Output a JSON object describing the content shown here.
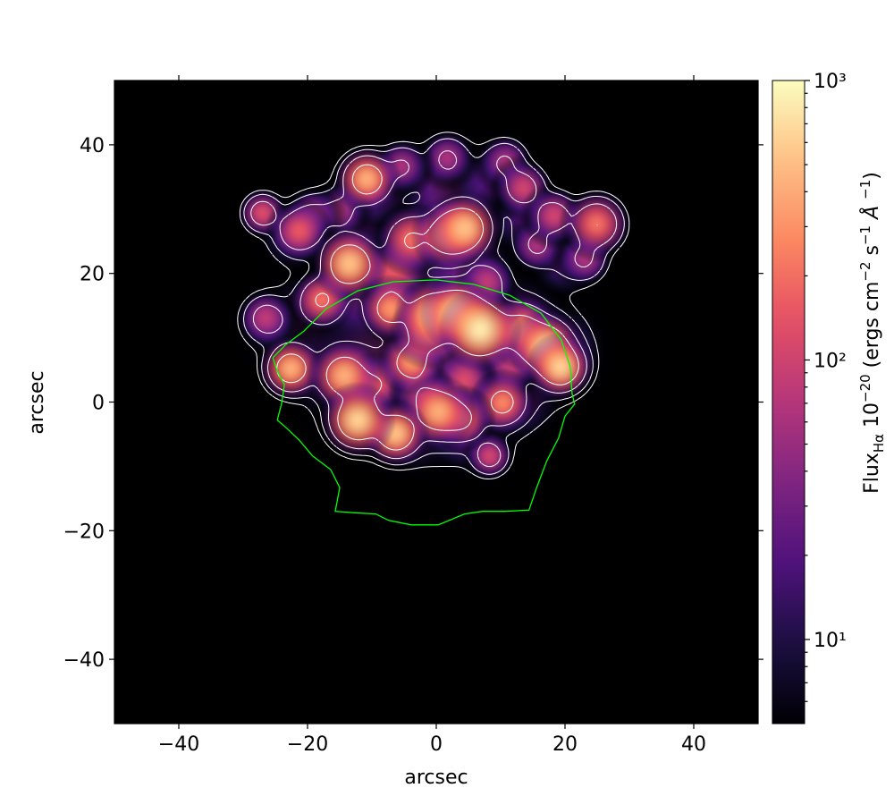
{
  "chart_data": {
    "type": "image",
    "xlabel": "arcsec",
    "ylabel": "arcsec",
    "xlim": [
      -50,
      50
    ],
    "ylim": [
      -50,
      50
    ],
    "xticks": [
      {
        "value": -40,
        "label": "−40"
      },
      {
        "value": -20,
        "label": "−20"
      },
      0,
      20,
      40
    ],
    "yticks": [
      {
        "value": -40,
        "label": "−40"
      },
      {
        "value": -20,
        "label": "−20"
      },
      0,
      20,
      40
    ],
    "colormap": "magma",
    "background": "#000000",
    "clim": [
      5,
      1000
    ],
    "log_color": true,
    "colorbar": {
      "label": [
        "Flux",
        "Hα",
        " 10",
        "−20",
        " (ergs cm",
        "−2",
        " s",
        "−1",
        " Å ",
        "−1",
        ")"
      ],
      "ticks": [
        {
          "value": 10,
          "label": "10¹"
        },
        {
          "value": 100,
          "label": "10²"
        },
        {
          "value": 1000,
          "label": "10³"
        }
      ],
      "minor_ticks": [
        6,
        7,
        8,
        9,
        20,
        30,
        40,
        50,
        60,
        70,
        80,
        90,
        200,
        300,
        400,
        500,
        600,
        700,
        800,
        900
      ]
    },
    "sources": {
      "x": [
        -20,
        -15,
        -10,
        -3,
        5,
        12,
        18,
        -8,
        3,
        12,
        -12,
        -3,
        5,
        -14,
        -9,
        2,
        8,
        14,
        20,
        -22,
        -26,
        11.4,
        4.4,
        -9.4,
        -2.2,
        7.9,
        15.6,
        23.1,
        -15,
        -19.2,
        1.7,
        -5.3,
        10.7,
        13.5,
        18.3,
        -27,
        -26.5,
        8.3,
        -21.3,
        -6.7,
        -3.9,
        24.9,
        -17.8,
        10.3,
        4,
        -3.9,
        -7.1,
        -1.4,
        13.2,
        0.3,
        -10.8,
        -13.5,
        -22.6,
        -14.3,
        1.9,
        4.4,
        -0.7,
        -6.3,
        17,
        19.3,
        -12.2,
        3.3,
        6.8
      ],
      "y": [
        12,
        5,
        0,
        -3,
        -3,
        2,
        8,
        8,
        8,
        12,
        18,
        20,
        20,
        27,
        33,
        33,
        34,
        28,
        22,
        26,
        12,
        5.5,
        3.4,
        2.7,
        1.3,
        18.7,
        24.3,
        22.2,
        29.8,
        29.1,
        38,
        36.7,
        37.4,
        33.3,
        29,
        29.4,
        13.1,
        -8.4,
        26.6,
        20,
        25.3,
        27.7,
        15.9,
        -0.1,
        -2.6,
        6.2,
        14.5,
        11,
        11.1,
        -1.5,
        34.7,
        21.5,
        5.2,
        4.1,
        26,
        27,
        13.5,
        -4.9,
        8.5,
        5.5,
        -2.8,
        13.8,
        11.3
      ],
      "flux": [
        30,
        35,
        30,
        30,
        30,
        30,
        30,
        40,
        45,
        35,
        35,
        40,
        30,
        25,
        25,
        30,
        20,
        20,
        20,
        20,
        20,
        80,
        120,
        150,
        120,
        80,
        60,
        60,
        60,
        60,
        60,
        60,
        60,
        100,
        100,
        120,
        80,
        100,
        150,
        150,
        200,
        200,
        200,
        250,
        200,
        300,
        300,
        300,
        300,
        400,
        400,
        500,
        400,
        400,
        400,
        500,
        500,
        500,
        600,
        600,
        600,
        700,
        800
      ],
      "sigma": [
        4,
        4,
        4,
        4,
        4,
        4,
        4,
        5,
        5,
        4,
        4,
        4,
        4,
        4,
        3,
        4,
        3,
        3,
        3,
        3,
        2.5,
        1.8,
        1.8,
        1.8,
        1.8,
        1.8,
        1.8,
        1.8,
        1.8,
        1.8,
        1.8,
        1.8,
        1.8,
        1.8,
        1.8,
        1.5,
        1.8,
        1.5,
        1.8,
        2,
        2,
        2,
        1.8,
        1.8,
        1.8,
        1.8,
        1.8,
        2,
        2,
        2,
        1.8,
        2,
        1.8,
        2,
        2,
        2,
        2,
        1.8,
        2,
        1.8,
        2,
        2,
        2.2
      ]
    },
    "contour_levels": [
      8,
      20,
      60,
      200
    ],
    "contour_color": "#ffffff",
    "outline": {
      "color": "#00ff00",
      "x": [
        -25.4,
        -23.3,
        -20.6,
        -17.1,
        -12.2,
        -6.7,
        0,
        5.8,
        11.4,
        16.3,
        19.4,
        20.8,
        21.1,
        21.5,
        20.0,
        19.0,
        17.2,
        15.6,
        14.4,
        10.7,
        7.2,
        4.4,
        0.3,
        -3.9,
        -7.4,
        -9.4,
        -12.9,
        -15.7,
        -15.0,
        -16.4,
        -19.2,
        -21.3,
        -23.3,
        -24.7,
        -24.0,
        -23.6,
        -24.7,
        -25.4
      ],
      "y": [
        6.9,
        9.0,
        11.0,
        14.5,
        17.3,
        18.7,
        19.0,
        18.3,
        16.6,
        13.8,
        9.7,
        5.5,
        1.3,
        -0.3,
        -2.2,
        -5.6,
        -9.1,
        -13.3,
        -16.8,
        -17.0,
        -17.0,
        -17.4,
        -19.1,
        -19.1,
        -18.4,
        -17.4,
        -17.2,
        -17.0,
        -13.3,
        -10.5,
        -8.4,
        -5.9,
        -4.0,
        -2.8,
        -0.1,
        2.7,
        4.8,
        6.9
      ]
    }
  }
}
